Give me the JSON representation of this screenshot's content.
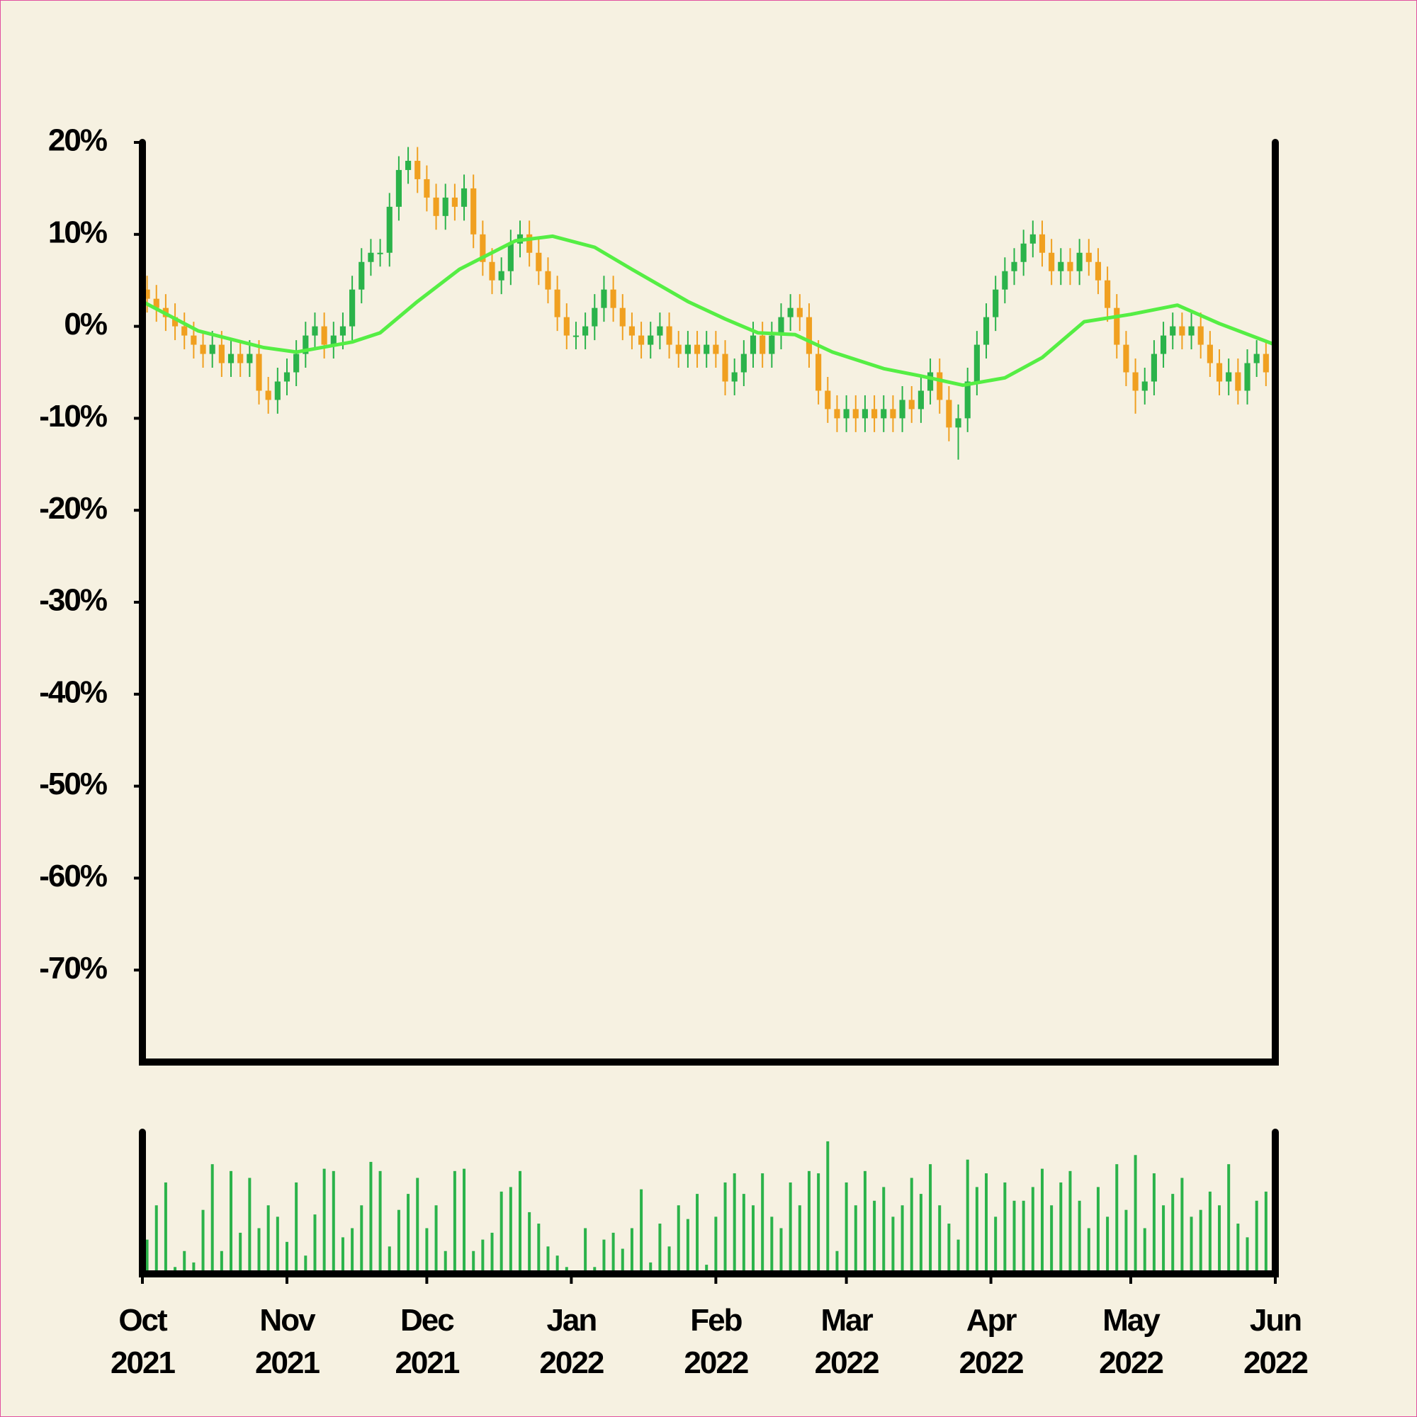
{
  "chart_data": {
    "type": "candlestick",
    "up_color": "#2bb34a",
    "down_color": "#f0a020",
    "xlim": [
      0,
      243
    ],
    "xticks": [
      {
        "value": 0,
        "label": "Oct 2021"
      },
      {
        "value": 31,
        "label": "Nov 2021"
      },
      {
        "value": 61,
        "label": "Dec 2021"
      },
      {
        "value": 92,
        "label": "Jan 2022"
      },
      {
        "value": 123,
        "label": "Feb 2022"
      },
      {
        "value": 151,
        "label": "Mar 2022"
      },
      {
        "value": 182,
        "label": "Apr 2022"
      },
      {
        "value": 212,
        "label": "May 2022"
      },
      {
        "value": 243,
        "label": "Jun 2022"
      }
    ],
    "ylim": [
      -80,
      20
    ],
    "yticks": [
      {
        "value": 20,
        "label": "20%"
      },
      {
        "value": 10,
        "label": "10%"
      },
      {
        "value": 0,
        "label": "0%"
      },
      {
        "value": -10,
        "label": "-10%"
      },
      {
        "value": -20,
        "label": "-20%"
      },
      {
        "value": -30,
        "label": "-30%"
      },
      {
        "value": -40,
        "label": "-40%"
      },
      {
        "value": -50,
        "label": "-50%"
      },
      {
        "value": -60,
        "label": "-60%"
      },
      {
        "value": -70,
        "label": "-70%"
      }
    ],
    "x": [
      1,
      3,
      5,
      7,
      9,
      11,
      13,
      15,
      17,
      19,
      21,
      23,
      25,
      27,
      29,
      31,
      33,
      35,
      37,
      39,
      41,
      43,
      45,
      47,
      49,
      51,
      53,
      55,
      57,
      59,
      61,
      63,
      65,
      67,
      69,
      71,
      73,
      75,
      77,
      79,
      81,
      83,
      85,
      87,
      89,
      91,
      93,
      95,
      97,
      99,
      101,
      103,
      105,
      107,
      109,
      111,
      113,
      115,
      117,
      119,
      121,
      123,
      125,
      127,
      129,
      131,
      133,
      135,
      137,
      139,
      141,
      143,
      145,
      147,
      149,
      151,
      153,
      155,
      157,
      159,
      161,
      163,
      165,
      167,
      169,
      171,
      173,
      175,
      177,
      179,
      181,
      183,
      185,
      187,
      189,
      191,
      193,
      195,
      197,
      199,
      201,
      203,
      205,
      207,
      209,
      211,
      213,
      215,
      217,
      219,
      221,
      223,
      225,
      227,
      229,
      231,
      233,
      235,
      237,
      239,
      241
    ],
    "open": [
      4,
      3,
      2,
      1,
      0,
      -1,
      -2,
      -3,
      -2,
      -4,
      -3,
      -4,
      -3,
      -7,
      -8,
      -6,
      -5,
      -3,
      -1,
      0,
      -2,
      -1,
      0,
      4,
      7,
      8,
      8,
      13,
      17,
      18,
      16,
      14,
      12,
      14,
      13,
      15,
      10,
      7,
      5,
      6,
      9,
      10,
      8,
      6,
      4,
      1,
      -1,
      -1,
      0,
      2,
      4,
      2,
      0,
      -1,
      -2,
      -1,
      0,
      -2,
      -3,
      -2,
      -3,
      -2,
      -3,
      -6,
      -5,
      -3,
      -1,
      -3,
      -1,
      1,
      2,
      1,
      -3,
      -7,
      -9,
      -10,
      -9,
      -10,
      -9,
      -10,
      -9,
      -10,
      -8,
      -9,
      -7,
      -5,
      -8,
      -11,
      -10,
      -6,
      -2,
      1,
      4,
      6,
      7,
      9,
      10,
      8,
      6,
      7,
      6,
      8,
      7,
      5,
      2,
      -2,
      -5,
      -7,
      -6,
      -3,
      -1,
      0,
      -1,
      0,
      -2,
      -4,
      -6,
      -5,
      -7,
      -4,
      -3
    ],
    "high": [
      5.5,
      4.5,
      3.5,
      2.5,
      1.5,
      0.5,
      -0.5,
      -0.5,
      -0.5,
      -1.5,
      -1.5,
      -1.5,
      -1.5,
      -5.5,
      -4.5,
      -3.5,
      -1.5,
      0.5,
      1.5,
      1.5,
      0.5,
      1.5,
      5.5,
      8.5,
      9.5,
      9.5,
      14.5,
      18.5,
      19.5,
      19.5,
      17.5,
      15.5,
      15.5,
      15.5,
      16.5,
      16.5,
      11.5,
      8.5,
      7.5,
      10.5,
      11.5,
      11.5,
      9.5,
      7.5,
      5.5,
      2.5,
      0.5,
      1.5,
      3.5,
      5.5,
      5.5,
      3.5,
      1.5,
      0.5,
      0.5,
      1.5,
      1.5,
      -0.5,
      -0.5,
      -0.5,
      -0.5,
      -0.5,
      -1.5,
      -3.5,
      -1.5,
      0.5,
      0.5,
      0.5,
      2.5,
      3.5,
      3.5,
      2.5,
      -1.5,
      -5.5,
      -7.5,
      -7.5,
      -7.5,
      -7.5,
      -7.5,
      -7.5,
      -7.5,
      -6.5,
      -6.5,
      -5.5,
      -3.5,
      -3.5,
      -6.5,
      -8.5,
      -4.5,
      -0.5,
      2.5,
      5.5,
      7.5,
      8.5,
      10.5,
      11.5,
      11.5,
      9.5,
      8.5,
      8.5,
      9.5,
      9.5,
      8.5,
      6.5,
      3.5,
      -0.5,
      -3.5,
      -4.5,
      -1.5,
      0.5,
      1.5,
      1.5,
      1.5,
      1.5,
      -0.5,
      -2.5,
      -3.5,
      -3.5,
      -2.5,
      -1.5,
      -1.5
    ],
    "low": [
      1.5,
      0.5,
      -0.5,
      -1.5,
      -2.5,
      -3.5,
      -4.5,
      -4.5,
      -5.5,
      -5.5,
      -5.5,
      -5.5,
      -8.5,
      -9.5,
      -9.5,
      -7.5,
      -6.5,
      -4.5,
      -2.5,
      -3.5,
      -3.5,
      -2.5,
      -1.5,
      2.5,
      5.5,
      6.5,
      6.5,
      11.5,
      15.5,
      14.5,
      12.5,
      10.5,
      10.5,
      11.5,
      11.5,
      8.5,
      5.5,
      3.5,
      3.5,
      4.5,
      7.5,
      6.5,
      4.5,
      2.5,
      -0.5,
      -2.5,
      -2.5,
      -2.5,
      -1.5,
      0.5,
      0.5,
      -1.5,
      -2.5,
      -3.5,
      -3.5,
      -2.5,
      -3.5,
      -4.5,
      -4.5,
      -4.5,
      -4.5,
      -4.5,
      -7.5,
      -7.5,
      -6.5,
      -4.5,
      -4.5,
      -4.5,
      -2.5,
      -0.5,
      -0.5,
      -4.5,
      -8.5,
      -10.5,
      -11.5,
      -11.5,
      -11.5,
      -11.5,
      -11.5,
      -11.5,
      -11.5,
      -11.5,
      -10.5,
      -10.5,
      -8.5,
      -9.5,
      -12.5,
      -14.5,
      -11.5,
      -7.5,
      -3.5,
      -0.5,
      2.5,
      4.5,
      5.5,
      7.5,
      6.5,
      4.5,
      4.5,
      4.5,
      4.5,
      5.5,
      3.5,
      0.5,
      -3.5,
      -6.5,
      -9.5,
      -8.5,
      -7.5,
      -4.5,
      -2.5,
      -2.5,
      -2.5,
      -3.5,
      -5.5,
      -7.5,
      -7.5,
      -8.5,
      -8.5,
      -5.5,
      -6.5
    ],
    "close": [
      3,
      2,
      1,
      0,
      -1,
      -2,
      -3,
      -2,
      -4,
      -3,
      -4,
      -3,
      -7,
      -8,
      -6,
      -5,
      -3,
      -1,
      0,
      -2,
      -1,
      0,
      4,
      7,
      8,
      8,
      13,
      17,
      18,
      16,
      14,
      12,
      14,
      13,
      15,
      10,
      7,
      5,
      6,
      9,
      10,
      8,
      6,
      4,
      1,
      -1,
      -1,
      0,
      2,
      4,
      2,
      0,
      -1,
      -2,
      -1,
      0,
      -2,
      -3,
      -2,
      -3,
      -2,
      -3,
      -6,
      -5,
      -3,
      -1,
      -3,
      -1,
      1,
      2,
      1,
      -3,
      -7,
      -9,
      -10,
      -9,
      -10,
      -9,
      -10,
      -9,
      -10,
      -8,
      -9,
      -7,
      -5,
      -8,
      -11,
      -10,
      -6,
      -2,
      1,
      4,
      6,
      7,
      9,
      10,
      8,
      6,
      7,
      6,
      8,
      7,
      5,
      2,
      -2,
      -5,
      -7,
      -6,
      -3,
      -1,
      0,
      -1,
      0,
      -2,
      -4,
      -6,
      -5,
      -7,
      -4,
      -3,
      -5
    ],
    "moving_average": {
      "color": "#55ee44",
      "x": [
        0,
        12,
        26,
        33,
        45,
        51,
        59,
        68,
        80,
        88,
        97,
        105,
        117,
        125,
        132,
        140,
        148,
        159,
        167,
        176,
        185,
        193,
        202,
        212,
        222,
        231,
        243
      ],
      "values": [
        2.7,
        -0.5,
        -2.3,
        -2.8,
        -1.7,
        -0.7,
        2.7,
        6.2,
        9.3,
        9.8,
        8.6,
        6.2,
        2.7,
        0.8,
        -0.7,
        -0.9,
        -2.8,
        -4.6,
        -5.4,
        -6.4,
        -5.6,
        -3.4,
        0.5,
        1.3,
        2.3,
        0.3,
        -2
      ]
    },
    "volume": {
      "color": "#2bb34a",
      "ylim": [
        0,
        62
      ],
      "values": [
        15,
        30,
        40,
        3,
        10,
        5,
        28,
        48,
        10,
        45,
        18,
        42,
        20,
        30,
        25,
        14,
        40,
        8,
        26,
        46,
        45,
        16,
        20,
        30,
        49,
        45,
        12,
        28,
        35,
        42,
        20,
        30,
        10,
        45,
        46,
        10,
        15,
        18,
        36,
        38,
        45,
        27,
        22,
        12,
        8,
        3,
        1,
        20,
        3,
        15,
        18,
        11,
        20,
        37,
        5,
        22,
        12,
        30,
        24,
        35,
        4,
        25,
        40,
        44,
        35,
        30,
        44,
        25,
        20,
        40,
        30,
        45,
        44,
        58,
        10,
        40,
        30,
        45,
        32,
        38,
        25,
        30,
        42,
        35,
        48,
        30,
        22,
        15,
        50,
        38,
        44,
        25,
        40,
        32,
        32,
        38,
        46,
        30,
        40,
        45,
        32,
        20,
        38,
        25,
        48,
        28,
        52,
        20,
        44,
        30,
        35,
        42,
        25,
        28,
        36,
        30,
        48,
        22,
        16,
        32,
        36
      ]
    }
  }
}
